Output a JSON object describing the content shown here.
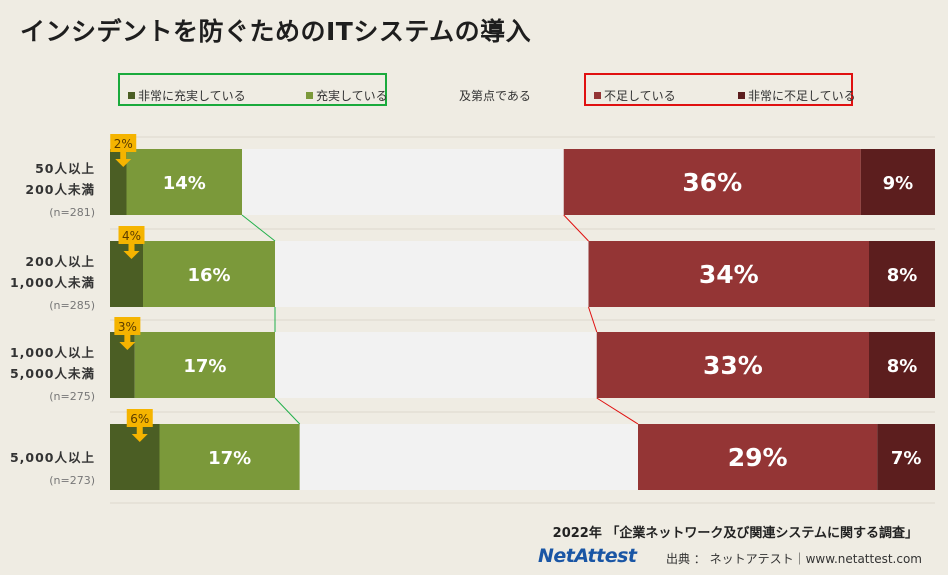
{
  "title": "インシデントを防ぐためのITシステムの導入",
  "legend": [
    {
      "label": "非常に充実している",
      "color": "#4b5e24"
    },
    {
      "label": "充実している",
      "color": "#7b993a"
    },
    {
      "label": "及第点である",
      "color": "#f2f2f2"
    },
    {
      "label": "不足している",
      "color": "#943535"
    },
    {
      "label": "非常に不足している",
      "color": "#5c1e1e"
    }
  ],
  "legend_frames": {
    "positive_color": "#1aaa3c",
    "negative_color": "#e01010"
  },
  "rows": [
    {
      "label_line1": "50人以上",
      "label_line2": "200人未満",
      "n": "(n=281)",
      "values": [
        2,
        14,
        39,
        36,
        9
      ],
      "labels": [
        "2%",
        "14%",
        "",
        "36%",
        "9%"
      ]
    },
    {
      "label_line1": "200人以上",
      "label_line2": "1,000人未満",
      "n": "(n=285)",
      "values": [
        4,
        16,
        38,
        34,
        8
      ],
      "labels": [
        "4%",
        "16%",
        "",
        "34%",
        "8%"
      ]
    },
    {
      "label_line1": "1,000人以上",
      "label_line2": "5,000人未満",
      "n": "(n=275)",
      "values": [
        3,
        17,
        39,
        33,
        8
      ],
      "labels": [
        "3%",
        "17%",
        "",
        "33%",
        "8%"
      ]
    },
    {
      "label_line1": "5,000人以上",
      "label_line2": "",
      "n": "(n=273)",
      "values": [
        6,
        17,
        41,
        29,
        7
      ],
      "labels": [
        "6%",
        "17%",
        "",
        "29%",
        "7%"
      ]
    }
  ],
  "chart_data": {
    "type": "bar",
    "orientation": "horizontal",
    "stacked": true,
    "normalized": true,
    "title": "インシデントを防ぐためのITシステムの導入",
    "categories": [
      "50人以上200人未満 (n=281)",
      "200人以上1,000人未満 (n=285)",
      "1,000人以上5,000人未満 (n=275)",
      "5,000人以上 (n=273)"
    ],
    "series": [
      {
        "name": "非常に充実している",
        "values": [
          2,
          4,
          3,
          6
        ]
      },
      {
        "name": "充実している",
        "values": [
          14,
          16,
          17,
          17
        ]
      },
      {
        "name": "及第点である",
        "values": [
          39,
          38,
          39,
          41
        ]
      },
      {
        "name": "不足している",
        "values": [
          36,
          34,
          33,
          29
        ]
      },
      {
        "name": "非常に不足している",
        "values": [
          9,
          8,
          8,
          7
        ]
      }
    ],
    "legend_position": "top",
    "callout_color": "#f5b400"
  },
  "footer": {
    "survey": "2022年 「企業ネットワーク及び関連システムに関する調査」",
    "brand": "NetAttest",
    "source": "出典 ： ネットアテスト｜www.netattest.com"
  }
}
